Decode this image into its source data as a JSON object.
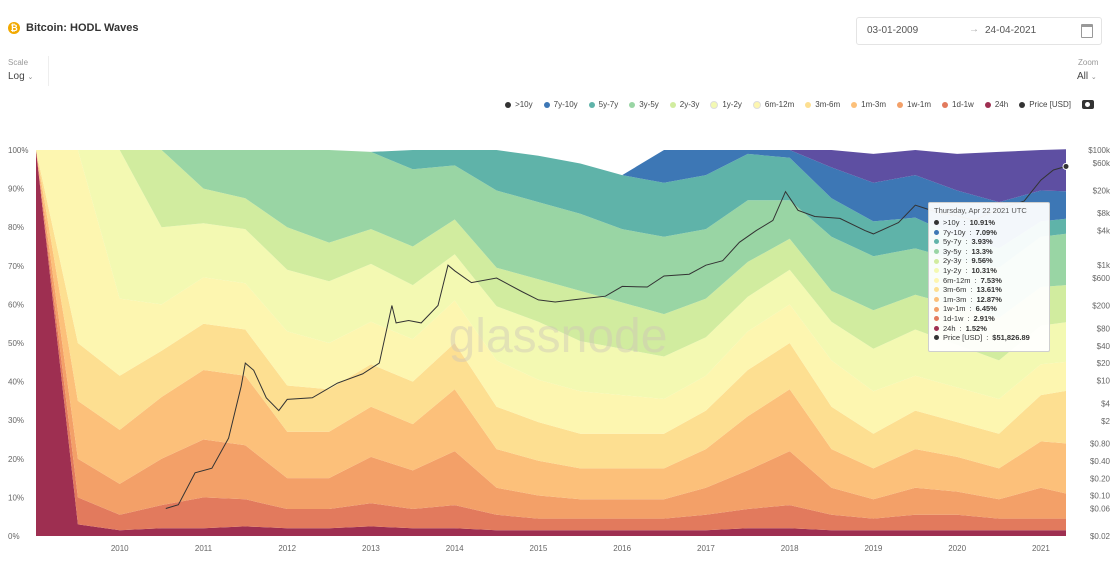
{
  "header": {
    "title": "Bitcoin: HODL Waves",
    "date_from": "03-01-2009",
    "date_to": "24-04-2021"
  },
  "controls": {
    "scale_label": "Scale",
    "scale_value": "Log",
    "zoom_label": "Zoom",
    "zoom_value": "All"
  },
  "watermark": "glassnode",
  "colors": {
    ">10y": "#5e4fa2",
    "7y-10y": "#3d77b5",
    "5y-7y": "#5fb3a9",
    "3y-5y": "#99d5a4",
    "2y-3y": "#d1ec9f",
    "1y-2y": "#f3f9b2",
    "6m-12m": "#fdf6b0",
    "3m-6m": "#fddf91",
    "1m-3m": "#fcc07a",
    "1w-1m": "#f3a068",
    "1d-1w": "#e27a5d",
    "24h": "#9e2f51",
    "price": "#333333"
  },
  "tooltip": {
    "date": "Thursday, Apr 22 2021 UTC",
    "rows": [
      {
        "label": ">10y",
        "value": "10.91%"
      },
      {
        "label": "7y-10y",
        "value": "7.09%"
      },
      {
        "label": "5y-7y",
        "value": "3.93%"
      },
      {
        "label": "3y-5y",
        "value": "13.3%"
      },
      {
        "label": "2y-3y",
        "value": "9.56%"
      },
      {
        "label": "1y-2y",
        "value": "10.31%"
      },
      {
        "label": "6m-12m",
        "value": "7.53%"
      },
      {
        "label": "3m-6m",
        "value": "13.61%"
      },
      {
        "label": "1m-3m",
        "value": "12.87%"
      },
      {
        "label": "1w-1m",
        "value": "6.45%"
      },
      {
        "label": "1d-1w",
        "value": "2.91%"
      },
      {
        "label": "24h",
        "value": "1.52%"
      },
      {
        "label": "Price [USD]",
        "value": "$51,826.89"
      }
    ]
  },
  "chart_data": {
    "type": "area",
    "stacked": true,
    "x": [
      2009.0,
      2009.5,
      2010.0,
      2010.5,
      2011.0,
      2011.5,
      2012.0,
      2012.5,
      2013.0,
      2013.5,
      2014.0,
      2014.5,
      2015.0,
      2015.5,
      2016.0,
      2016.5,
      2017.0,
      2017.5,
      2018.0,
      2018.5,
      2019.0,
      2019.5,
      2020.0,
      2020.5,
      2021.0,
      2021.3
    ],
    "xlim": [
      2009.0,
      2021.3
    ],
    "xticks": [
      "2010",
      "2011",
      "2012",
      "2013",
      "2014",
      "2015",
      "2016",
      "2017",
      "2018",
      "2019",
      "2020",
      "2021"
    ],
    "ylim": [
      0,
      100
    ],
    "yticks": [
      "0%",
      "10%",
      "20%",
      "30%",
      "40%",
      "50%",
      "60%",
      "70%",
      "80%",
      "90%",
      "100%"
    ],
    "y2_scale": "log",
    "y2lim": [
      0.02,
      100000
    ],
    "y2ticks": [
      "$0.02",
      "$0.06",
      "$0.10",
      "$0.20",
      "$0.40",
      "$0.80",
      "$2",
      "$4",
      "$10",
      "$20",
      "$40",
      "$80",
      "$200",
      "$600",
      "$1k",
      "$4k",
      "$8k",
      "$20k",
      "$60k",
      "$100k"
    ],
    "legend_position": "top-right",
    "series": [
      {
        "name": "24h",
        "values": [
          100,
          3,
          1.5,
          2,
          2,
          2.5,
          2,
          2,
          2.5,
          2,
          2,
          1.5,
          1.5,
          1.5,
          1.5,
          1.5,
          1.5,
          2,
          2,
          1.5,
          1.5,
          1.5,
          1.5,
          1.5,
          1.5,
          1.5
        ]
      },
      {
        "name": "1d-1w",
        "values": [
          0,
          7,
          4,
          6,
          8,
          7,
          5,
          5,
          6,
          5,
          6,
          4,
          3,
          3,
          3,
          3,
          4,
          5,
          6,
          4,
          3,
          4,
          4,
          3,
          3,
          3
        ]
      },
      {
        "name": "1w-1m",
        "values": [
          0,
          10,
          8,
          12,
          15,
          14,
          8,
          8,
          12,
          10,
          14,
          7,
          6,
          5,
          5,
          5,
          7,
          10,
          14,
          7,
          5,
          7,
          6,
          5,
          8,
          6.5
        ]
      },
      {
        "name": "1m-3m",
        "values": [
          0,
          15,
          14,
          16,
          18,
          18,
          12,
          12,
          13,
          12,
          16,
          10,
          9,
          8,
          8,
          8,
          10,
          14,
          16,
          10,
          8,
          10,
          9,
          8,
          12,
          13
        ]
      },
      {
        "name": "3m-6m",
        "values": [
          0,
          15,
          14,
          12,
          12,
          12,
          12,
          11,
          11,
          11,
          12,
          11,
          10,
          9,
          9,
          9,
          10,
          12,
          12,
          11,
          9,
          10,
          9,
          9,
          12,
          13.6
        ]
      },
      {
        "name": "6m-12m",
        "values": [
          0,
          50,
          20,
          12,
          12,
          12,
          14,
          12,
          11,
          11,
          11,
          12,
          11,
          11,
          10,
          9,
          9,
          10,
          10,
          12,
          11,
          9,
          9,
          9,
          8,
          7.5
        ]
      },
      {
        "name": "1y-2y",
        "values": [
          0,
          0,
          38.5,
          20,
          14,
          14,
          16,
          16,
          15,
          14,
          12,
          14,
          15,
          13,
          12,
          11,
          10,
          9,
          9,
          10,
          11,
          12,
          11,
          10,
          10,
          10.3
        ]
      },
      {
        "name": "2y-3y",
        "values": [
          0,
          0,
          0,
          20,
          9,
          8,
          11,
          10,
          9,
          10,
          9,
          10,
          11,
          13,
          12,
          11,
          10,
          9,
          8,
          8,
          10,
          9,
          10,
          11,
          10,
          9.6
        ]
      },
      {
        "name": "3y-5y",
        "values": [
          0,
          0,
          0,
          0,
          10,
          12.5,
          20,
          24,
          20,
          20,
          14,
          20,
          20,
          20,
          19,
          20,
          18,
          16,
          10,
          14,
          14,
          12,
          12,
          13,
          13,
          13.3
        ]
      },
      {
        "name": "5y-7y",
        "values": [
          0,
          0,
          0,
          0,
          0,
          0,
          0,
          0,
          0,
          5,
          4,
          10.5,
          12,
          13,
          14,
          14,
          14,
          12,
          11,
          10,
          9,
          8,
          6,
          5,
          4,
          3.9
        ]
      },
      {
        "name": "7y-10y",
        "values": [
          0,
          0,
          0,
          0,
          0,
          0,
          0,
          0,
          0,
          0,
          0,
          0,
          0,
          0,
          0,
          8.5,
          6.5,
          1,
          2,
          8,
          10,
          11,
          12,
          12,
          8,
          7.1
        ]
      },
      {
        "name": ">10y",
        "values": [
          0,
          0,
          0,
          0,
          0,
          0,
          0,
          0,
          0,
          0,
          0,
          0,
          0,
          0,
          0,
          0,
          0,
          0,
          0,
          4.5,
          7.5,
          6.5,
          9.5,
          13,
          10.5,
          10.9
        ]
      }
    ],
    "price_series": {
      "name": "Price [USD]",
      "x": [
        2010.55,
        2010.7,
        2010.9,
        2011.1,
        2011.3,
        2011.45,
        2011.5,
        2011.6,
        2011.75,
        2011.9,
        2012.0,
        2012.3,
        2012.6,
        2012.9,
        2013.1,
        2013.25,
        2013.3,
        2013.45,
        2013.6,
        2013.8,
        2013.92,
        2014.0,
        2014.2,
        2014.5,
        2014.8,
        2015.0,
        2015.2,
        2015.5,
        2015.8,
        2016.0,
        2016.3,
        2016.5,
        2016.8,
        2017.0,
        2017.2,
        2017.4,
        2017.6,
        2017.8,
        2017.95,
        2018.1,
        2018.3,
        2018.6,
        2018.9,
        2019.0,
        2019.3,
        2019.5,
        2019.8,
        2020.0,
        2020.2,
        2020.5,
        2020.8,
        2021.0,
        2021.15,
        2021.3
      ],
      "values": [
        0.06,
        0.07,
        0.25,
        0.3,
        1,
        8,
        20,
        15,
        5,
        3,
        4.7,
        5,
        9,
        13,
        20,
        200,
        100,
        110,
        100,
        200,
        1000,
        800,
        500,
        600,
        350,
        250,
        230,
        260,
        290,
        430,
        420,
        650,
        700,
        1000,
        1200,
        2500,
        4000,
        6000,
        19000,
        9000,
        7000,
        6500,
        4000,
        3500,
        5500,
        11000,
        8000,
        7200,
        6000,
        9500,
        13000,
        30000,
        45000,
        51826.89
      ]
    }
  }
}
